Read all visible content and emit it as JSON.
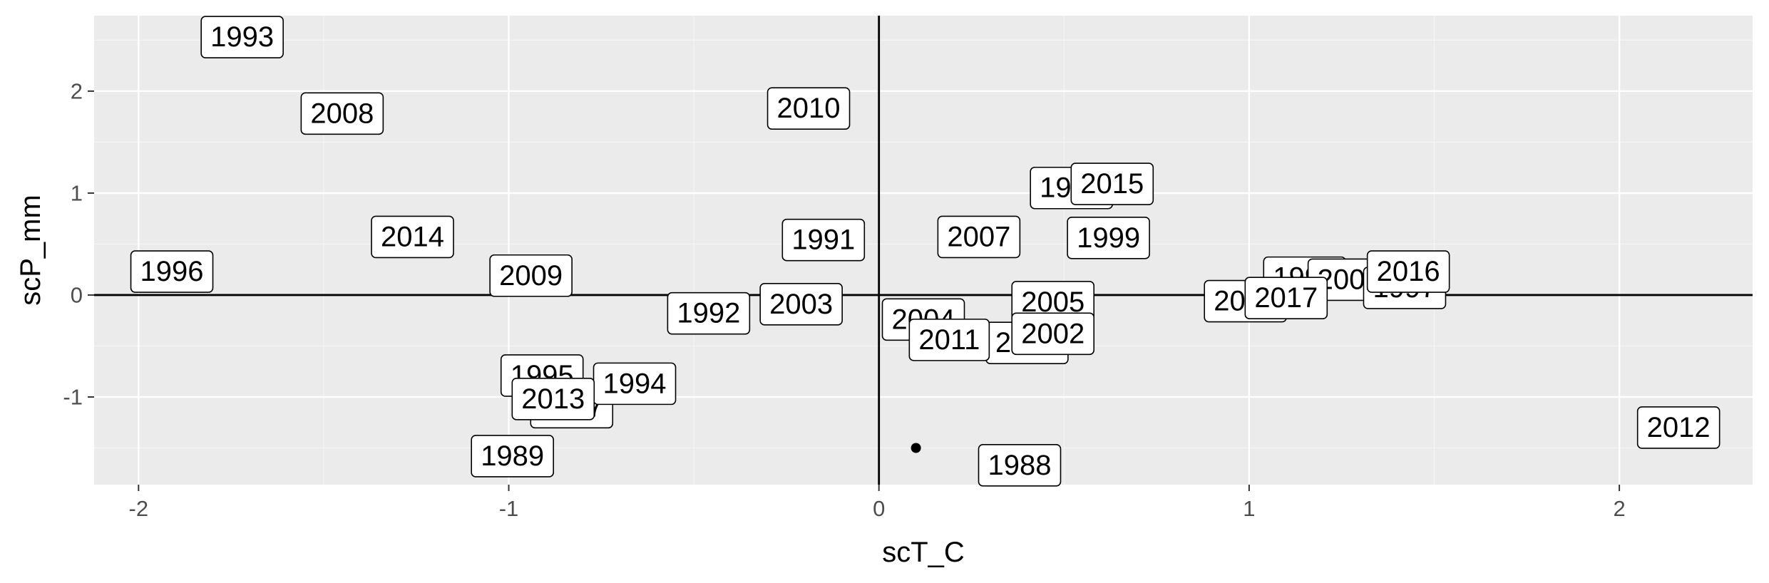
{
  "chart_data": {
    "type": "scatter",
    "title": "",
    "xlabel": "scT_C",
    "ylabel": "scP_mm",
    "xlim": [
      -2.12,
      2.36
    ],
    "ylim": [
      -1.86,
      2.74
    ],
    "xticks": [
      -2,
      -1,
      0,
      1,
      2
    ],
    "yticks": [
      -1,
      0,
      1,
      2
    ],
    "grid": true,
    "reference_lines": {
      "x": 0,
      "y": 0
    },
    "points": [
      {
        "x": 0.1,
        "y": -1.5
      }
    ],
    "labels": [
      {
        "text": "1993",
        "x": -1.72,
        "y": 2.53
      },
      {
        "text": "2008",
        "x": -1.45,
        "y": 1.78
      },
      {
        "text": "2010",
        "x": -0.19,
        "y": 1.83
      },
      {
        "text": "1990",
        "x": 0.52,
        "y": 1.05
      },
      {
        "text": "2015",
        "x": 0.63,
        "y": 1.09
      },
      {
        "text": "2014",
        "x": -1.26,
        "y": 0.57
      },
      {
        "text": "1991",
        "x": -0.15,
        "y": 0.54
      },
      {
        "text": "2007",
        "x": 0.27,
        "y": 0.57
      },
      {
        "text": "1999",
        "x": 0.62,
        "y": 0.56
      },
      {
        "text": "1996",
        "x": -1.91,
        "y": 0.23
      },
      {
        "text": "2009",
        "x": -0.94,
        "y": 0.19
      },
      {
        "text": "1998",
        "x": 1.15,
        "y": 0.17
      },
      {
        "text": "2006",
        "x": 1.27,
        "y": 0.15
      },
      {
        "text": "1997",
        "x": 1.42,
        "y": 0.07
      },
      {
        "text": "2016",
        "x": 1.43,
        "y": 0.23
      },
      {
        "text": "2000",
        "x": 0.99,
        "y": -0.06
      },
      {
        "text": "2017",
        "x": 1.1,
        "y": -0.03
      },
      {
        "text": "1992",
        "x": -0.46,
        "y": -0.18
      },
      {
        "text": "2003",
        "x": -0.21,
        "y": -0.09
      },
      {
        "text": "2004",
        "x": 0.12,
        "y": -0.24
      },
      {
        "text": "2005",
        "x": 0.47,
        "y": -0.07
      },
      {
        "text": "2001",
        "x": 0.4,
        "y": -0.47
      },
      {
        "text": "2002",
        "x": 0.47,
        "y": -0.38
      },
      {
        "text": "2011",
        "x": 0.19,
        "y": -0.44
      },
      {
        "text": "1995",
        "x": -0.91,
        "y": -0.79
      },
      {
        "text": "1987",
        "x": -0.83,
        "y": -1.1
      },
      {
        "text": "1994",
        "x": -0.66,
        "y": -0.87
      },
      {
        "text": "2013",
        "x": -0.88,
        "y": -1.02
      },
      {
        "text": "1989",
        "x": -0.99,
        "y": -1.58
      },
      {
        "text": "1988",
        "x": 0.38,
        "y": -1.67
      },
      {
        "text": "2012",
        "x": 2.16,
        "y": -1.3
      }
    ],
    "colors": {
      "panel": "#ebebeb",
      "grid_major": "#ffffff",
      "grid_minor": "#f5f5f5",
      "reference_line": "#000000",
      "point": "#000000",
      "tick_label": "#4d4d4d"
    }
  }
}
